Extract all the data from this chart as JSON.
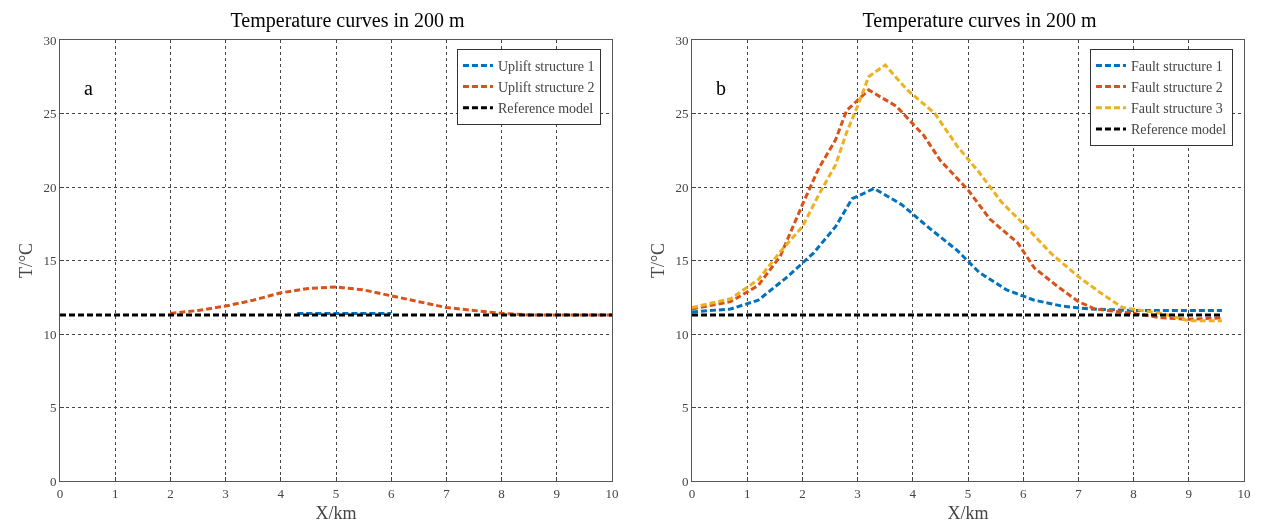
{
  "chart_data": [
    {
      "type": "line",
      "title": "Temperature curves in 200 m",
      "xlabel": "X/km",
      "ylabel": "T/°C",
      "annotations": [
        "a"
      ],
      "xlim": [
        0,
        10
      ],
      "xticks": [
        0,
        1,
        2,
        3,
        4,
        5,
        6,
        7,
        8,
        9,
        10
      ],
      "ylim": [
        0,
        30
      ],
      "yticks": [
        0,
        5,
        10,
        15,
        20,
        25,
        30
      ],
      "grid": true,
      "legend": "top right",
      "marker": "none",
      "line_style": "dashed",
      "series": [
        {
          "name": "Uplift structure 1",
          "color": "#0072bd",
          "x": [
            4.3,
            5,
            6
          ],
          "values": [
            11.4,
            11.4,
            11.4
          ]
        },
        {
          "name": "Uplift structure 2",
          "color": "#d95319",
          "x": [
            2,
            2.5,
            3,
            3.5,
            4,
            4.5,
            5,
            5.5,
            6,
            6.5,
            7,
            7.5,
            8,
            8.5,
            10
          ],
          "values": [
            11.4,
            11.6,
            11.9,
            12.3,
            12.8,
            13.1,
            13.2,
            13.0,
            12.6,
            12.2,
            11.8,
            11.6,
            11.4,
            11.3,
            11.3
          ]
        },
        {
          "name": "Reference model",
          "color": "#000000",
          "x": [
            0,
            10
          ],
          "values": [
            11.3,
            11.3
          ]
        }
      ]
    },
    {
      "type": "line",
      "title": "Temperature curves in 200 m",
      "xlabel": "X/km",
      "ylabel": "T/°C",
      "annotations": [
        "b"
      ],
      "xlim": [
        0,
        10
      ],
      "xticks": [
        0,
        1,
        2,
        3,
        4,
        5,
        6,
        7,
        8,
        9,
        10
      ],
      "ylim": [
        0,
        30
      ],
      "yticks": [
        0,
        5,
        10,
        15,
        20,
        25,
        30
      ],
      "grid": true,
      "legend": "top right",
      "marker": "none",
      "line_style": "dashed",
      "series": [
        {
          "name": "Fault structure 1",
          "color": "#0072bd",
          "x": [
            0,
            0.7,
            1.2,
            1.7,
            2.2,
            2.6,
            2.9,
            3.3,
            3.8,
            4.3,
            4.8,
            5.2,
            5.7,
            6.2,
            6.7,
            7.2,
            8,
            9.6
          ],
          "values": [
            11.5,
            11.7,
            12.3,
            13.8,
            15.5,
            17.3,
            19.2,
            19.9,
            18.8,
            17.2,
            15.7,
            14.2,
            13.0,
            12.3,
            11.9,
            11.7,
            11.6,
            11.6
          ]
        },
        {
          "name": "Fault structure 2",
          "color": "#d95319",
          "x": [
            0,
            0.7,
            1.2,
            1.6,
            2,
            2.3,
            2.6,
            2.8,
            3.2,
            3.7,
            4.2,
            4.5,
            5,
            5.4,
            5.9,
            6.2,
            6.6,
            7,
            7.3,
            8,
            8.5,
            9,
            9.6
          ],
          "values": [
            11.7,
            12.2,
            13.3,
            15.3,
            18.8,
            21.3,
            23.2,
            25.2,
            26.6,
            25.5,
            23.5,
            21.8,
            19.8,
            17.8,
            16.2,
            14.5,
            13.3,
            12.2,
            11.7,
            11.4,
            11.1,
            11.0,
            11.1
          ]
        },
        {
          "name": "Fault structure 3",
          "color": "#edb120",
          "x": [
            0,
            0.7,
            1.2,
            1.6,
            2,
            2.3,
            2.6,
            2.8,
            3,
            3.2,
            3.5,
            3.9,
            4.4,
            4.8,
            5.2,
            5.6,
            6,
            6.5,
            7,
            7.4,
            7.8,
            8.5,
            9,
            9.6
          ],
          "values": [
            11.8,
            12.4,
            13.7,
            15.6,
            17.3,
            19.5,
            21.5,
            23.7,
            25.5,
            27.5,
            28.3,
            26.6,
            25.0,
            22.8,
            21.0,
            19.0,
            17.5,
            15.5,
            13.9,
            12.8,
            11.8,
            11.4,
            10.9,
            10.9
          ]
        },
        {
          "name": "Reference model",
          "color": "#000000",
          "x": [
            0,
            9.6
          ],
          "values": [
            11.3,
            11.3
          ]
        }
      ]
    }
  ]
}
